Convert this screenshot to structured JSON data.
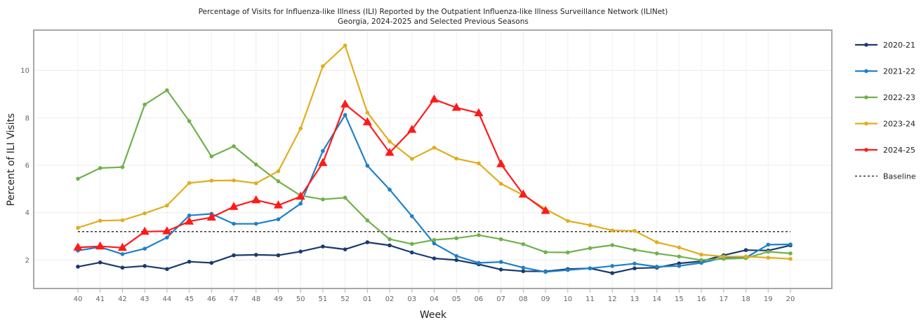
{
  "chart_data": {
    "type": "line",
    "title": "Percentage of Visits for Influenza-like Illness (ILI) Reported by the Outpatient Influenza-like Illness Surveillance Network (ILINet)",
    "subtitle": "Georgia, 2024-2025 and Selected Previous Seasons",
    "xlabel": "Week",
    "ylabel": "Percent of ILI Visits",
    "ylim": [
      0.8,
      11.7
    ],
    "yticks": [
      2,
      4,
      6,
      8,
      10
    ],
    "grid": true,
    "legend_position": "right",
    "categories": [
      "40",
      "41",
      "42",
      "43",
      "44",
      "45",
      "46",
      "47",
      "48",
      "49",
      "50",
      "51",
      "52",
      "01",
      "02",
      "03",
      "04",
      "05",
      "06",
      "07",
      "08",
      "09",
      "10",
      "11",
      "12",
      "13",
      "14",
      "15",
      "16",
      "17",
      "18",
      "19",
      "20"
    ],
    "series": [
      {
        "name": "2020-21",
        "color": "#1a3a6e",
        "marker": "circle",
        "values": [
          1.72,
          1.9,
          1.68,
          1.75,
          1.62,
          1.93,
          1.88,
          2.2,
          2.22,
          2.2,
          2.36,
          2.57,
          2.45,
          2.75,
          2.62,
          2.32,
          2.07,
          2.0,
          1.82,
          1.6,
          1.53,
          1.52,
          1.62,
          1.65,
          1.45,
          1.65,
          1.68,
          1.86,
          1.95,
          2.2,
          2.42,
          2.4,
          2.62
        ]
      },
      {
        "name": "2021-22",
        "color": "#1f80c8",
        "marker": "circle",
        "values": [
          2.4,
          2.55,
          2.25,
          2.48,
          2.95,
          3.88,
          3.95,
          3.53,
          3.53,
          3.72,
          4.38,
          6.6,
          8.12,
          5.98,
          4.97,
          3.85,
          2.7,
          2.17,
          1.88,
          1.92,
          1.68,
          1.5,
          1.58,
          1.65,
          1.75,
          1.85,
          1.72,
          1.75,
          1.88,
          2.1,
          2.1,
          2.65,
          2.66
        ]
      },
      {
        "name": "2022-23",
        "color": "#70b14b",
        "marker": "circle",
        "values": [
          5.43,
          5.88,
          5.92,
          8.56,
          9.16,
          7.86,
          6.37,
          6.8,
          6.03,
          5.32,
          4.72,
          4.56,
          4.63,
          3.67,
          2.88,
          2.68,
          2.85,
          2.92,
          3.05,
          2.88,
          2.67,
          2.33,
          2.32,
          2.5,
          2.63,
          2.43,
          2.28,
          2.15,
          2.0,
          2.05,
          2.08,
          2.35,
          2.28
        ]
      },
      {
        "name": "2023-24",
        "color": "#e1ad1e",
        "marker": "circle",
        "values": [
          3.36,
          3.66,
          3.68,
          3.97,
          4.3,
          5.25,
          5.35,
          5.36,
          5.24,
          5.75,
          7.55,
          10.18,
          11.05,
          8.22,
          7.0,
          6.27,
          6.74,
          6.28,
          6.08,
          5.22,
          4.74,
          4.15,
          3.65,
          3.47,
          3.25,
          3.23,
          2.75,
          2.53,
          2.23,
          2.15,
          2.15,
          2.1,
          2.05
        ]
      },
      {
        "name": "2024-25",
        "color": "#ff1a1a",
        "marker": "triangle",
        "values": [
          2.53,
          2.58,
          2.52,
          3.2,
          3.22,
          3.63,
          3.8,
          4.25,
          4.53,
          4.31,
          4.68,
          6.1,
          8.57,
          7.82,
          6.53,
          7.5,
          8.78,
          8.43,
          8.2,
          6.05,
          4.77,
          4.08,
          null,
          null,
          null,
          null,
          null,
          null,
          null,
          null,
          null,
          null,
          null
        ]
      },
      {
        "name": "Baseline",
        "color": "#333333",
        "marker": "none",
        "dashed": true,
        "values": [
          3.2,
          3.2,
          3.2,
          3.2,
          3.2,
          3.2,
          3.2,
          3.2,
          3.2,
          3.2,
          3.2,
          3.2,
          3.2,
          3.2,
          3.2,
          3.2,
          3.2,
          3.2,
          3.2,
          3.2,
          3.2,
          3.2,
          3.2,
          3.2,
          3.2,
          3.2,
          3.2,
          3.2,
          3.2,
          3.2,
          3.2,
          3.2,
          3.2
        ]
      }
    ]
  }
}
